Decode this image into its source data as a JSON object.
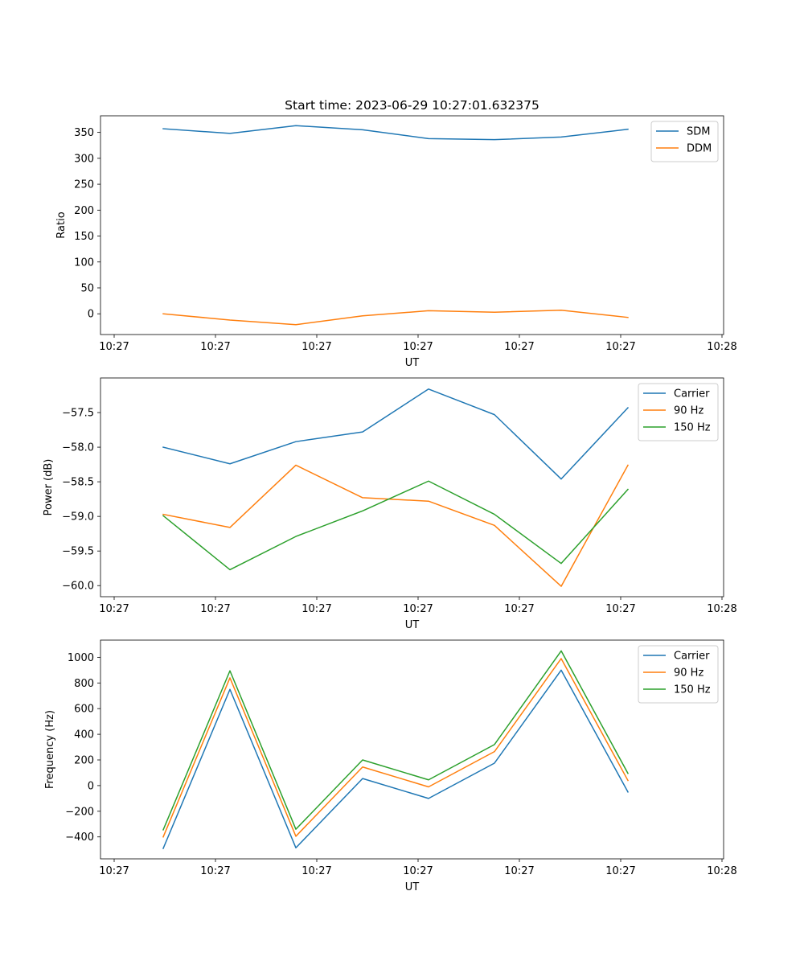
{
  "chart_data": [
    {
      "type": "line",
      "title": "Start time: 2023-06-29 10:27:01.632375",
      "xlabel": "UT",
      "ylabel": "Ratio",
      "xtick_labels": [
        "10:27",
        "10:27",
        "10:27",
        "10:27",
        "10:27",
        "10:27",
        "10:27",
        "10:28"
      ],
      "ylim": [
        -40,
        382
      ],
      "yticks": [
        0,
        50,
        100,
        150,
        200,
        250,
        300,
        350
      ],
      "ytick_labels": [
        "0",
        "50",
        "100",
        "150",
        "200",
        "250",
        "300",
        "350"
      ],
      "legend_position": "upper right",
      "grid": false,
      "series": [
        {
          "name": "SDM",
          "color": "#1f77b4",
          "values": [
            357,
            348,
            363,
            355,
            338,
            336,
            341,
            356
          ]
        },
        {
          "name": "DDM",
          "color": "#ff7f0e",
          "values": [
            0,
            -12,
            -21,
            -4,
            6,
            3,
            7,
            -7
          ]
        }
      ]
    },
    {
      "type": "line",
      "title": "",
      "xlabel": "UT",
      "ylabel": "Power (dB)",
      "xtick_labels": [
        "10:27",
        "10:27",
        "10:27",
        "10:27",
        "10:27",
        "10:27",
        "10:27",
        "10:28"
      ],
      "ylim": [
        -60.16,
        -57.0
      ],
      "yticks": [
        -60.0,
        -59.5,
        -59.0,
        -58.5,
        -58.0,
        -57.5
      ],
      "ytick_labels": [
        "−60.0",
        "−59.5",
        "−59.0",
        "−58.5",
        "−58.0",
        "−57.5"
      ],
      "legend_position": "upper right",
      "grid": false,
      "series": [
        {
          "name": "Carrier",
          "color": "#1f77b4",
          "values": [
            -58.0,
            -58.24,
            -57.92,
            -57.78,
            -57.16,
            -57.53,
            -58.46,
            -57.43
          ]
        },
        {
          "name": "90 Hz",
          "color": "#ff7f0e",
          "values": [
            -58.97,
            -59.16,
            -58.26,
            -58.73,
            -58.78,
            -59.13,
            -60.01,
            -58.26
          ]
        },
        {
          "name": "150 Hz",
          "color": "#2ca02c",
          "values": [
            -58.99,
            -59.77,
            -59.29,
            -58.92,
            -58.49,
            -58.97,
            -59.68,
            -58.61
          ]
        }
      ]
    },
    {
      "type": "line",
      "title": "",
      "xlabel": "UT",
      "ylabel": "Frequency (Hz)",
      "xtick_labels": [
        "10:27",
        "10:27",
        "10:27",
        "10:27",
        "10:27",
        "10:27",
        "10:27",
        "10:28"
      ],
      "ylim": [
        -571,
        1134
      ],
      "yticks": [
        -400,
        -200,
        0,
        200,
        400,
        600,
        800,
        1000
      ],
      "ytick_labels": [
        "−400",
        "−200",
        "0",
        "200",
        "400",
        "600",
        "800",
        "1000"
      ],
      "legend_position": "upper right",
      "grid": false,
      "series": [
        {
          "name": "Carrier",
          "color": "#1f77b4",
          "values": [
            -490,
            750,
            -485,
            55,
            -100,
            175,
            900,
            -50
          ]
        },
        {
          "name": "90 Hz",
          "color": "#ff7f0e",
          "values": [
            -400,
            840,
            -395,
            145,
            -10,
            265,
            990,
            40
          ]
        },
        {
          "name": "150 Hz",
          "color": "#2ca02c",
          "values": [
            -345,
            895,
            -340,
            200,
            45,
            320,
            1050,
            95
          ]
        }
      ]
    }
  ]
}
